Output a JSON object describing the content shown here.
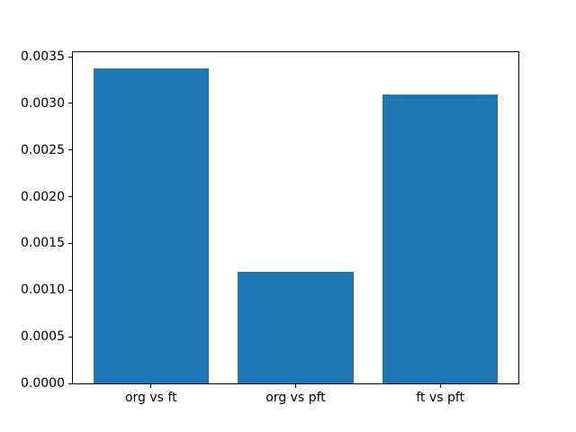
{
  "figure": {
    "background_color": "#ffffff",
    "axis_color": "#000000",
    "tick_label_color": "#000000"
  },
  "chart_data": {
    "type": "bar",
    "categories": [
      "org vs ft",
      "org vs pft",
      "ft vs pft"
    ],
    "values": [
      0.00338,
      0.0012,
      0.0031
    ],
    "series_color": "#1f77b4",
    "title": "",
    "xlabel": "",
    "ylabel": "",
    "ylim": [
      0,
      0.003549
    ],
    "xlim": [
      -0.54,
      2.54
    ],
    "bar_width": 0.8,
    "yticks": [
      0.0,
      0.0005,
      0.001,
      0.0015,
      0.002,
      0.0025,
      0.003,
      0.0035
    ],
    "ytick_labels": [
      "0.0000",
      "0.0005",
      "0.0010",
      "0.0015",
      "0.0020",
      "0.0025",
      "0.0030",
      "0.0035"
    ],
    "grid": false,
    "legend": false
  }
}
